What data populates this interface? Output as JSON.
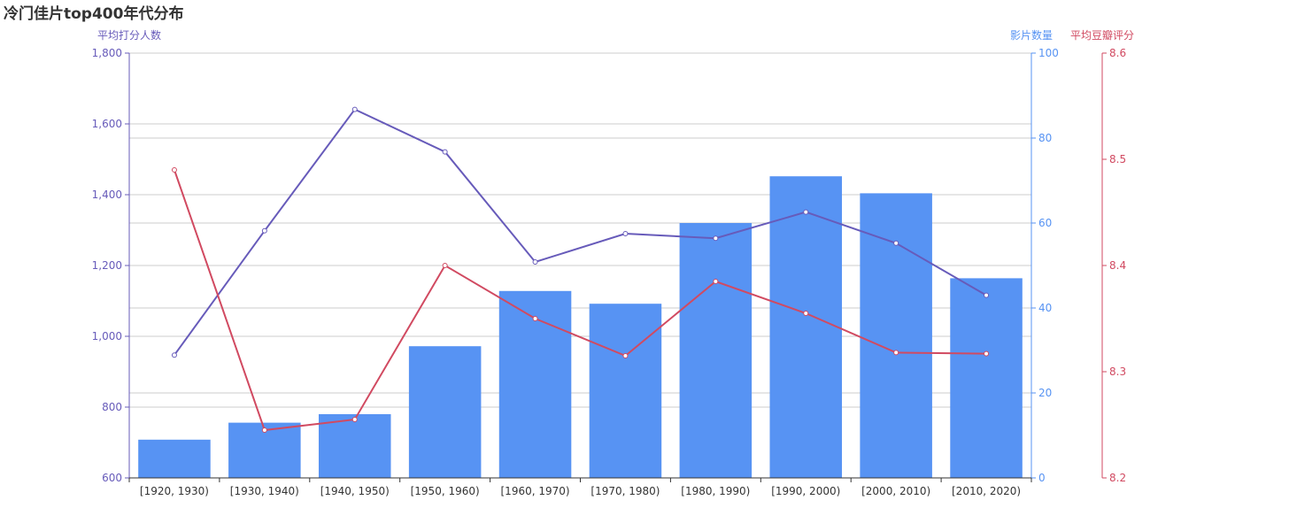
{
  "chart_data": {
    "type": "bar",
    "title": "冷门佳片top400年代分布",
    "categories": [
      "[1920, 1930)",
      "[1930, 1940)",
      "[1940, 1950)",
      "[1950, 1960)",
      "[1960, 1970)",
      "[1970, 1980)",
      "[1980, 1990)",
      "[1990, 2000)",
      "[2000, 2010)",
      "[2010, 2020)"
    ],
    "series": [
      {
        "type": "bar",
        "name": "影片数量",
        "axis": "right-1",
        "color": "#5793f3",
        "values": [
          9,
          13,
          15,
          31,
          44,
          41,
          60,
          71,
          67,
          47
        ]
      },
      {
        "type": "line",
        "name": "平均打分人数",
        "axis": "left",
        "color": "#675bba",
        "values": [
          947,
          1298,
          1641,
          1521,
          1210,
          1290,
          1277,
          1351,
          1263,
          1116
        ]
      },
      {
        "type": "line",
        "name": "平均豆瓣评分",
        "axis": "right-2",
        "color": "#d14a61",
        "values": [
          8.49,
          8.245,
          8.255,
          8.4,
          8.35,
          8.315,
          8.385,
          8.355,
          8.318,
          8.317
        ]
      }
    ],
    "axes": {
      "left": {
        "name": "平均打分人数",
        "min": 600,
        "max": 1800,
        "ticks": [
          "600",
          "800",
          "1,000",
          "1,200",
          "1,400",
          "1,600",
          "1,800"
        ],
        "color": "#675bba"
      },
      "right1": {
        "name": "影片数量",
        "min": 0,
        "max": 100,
        "ticks": [
          "0",
          "20",
          "40",
          "60",
          "80",
          "100"
        ],
        "color": "#5793f3"
      },
      "right2": {
        "name": "平均豆瓣评分",
        "min": 8.2,
        "max": 8.6,
        "ticks": [
          "8.2",
          "8.3",
          "8.4",
          "8.5",
          "8.6"
        ],
        "color": "#d14a61"
      }
    },
    "grid": true
  }
}
